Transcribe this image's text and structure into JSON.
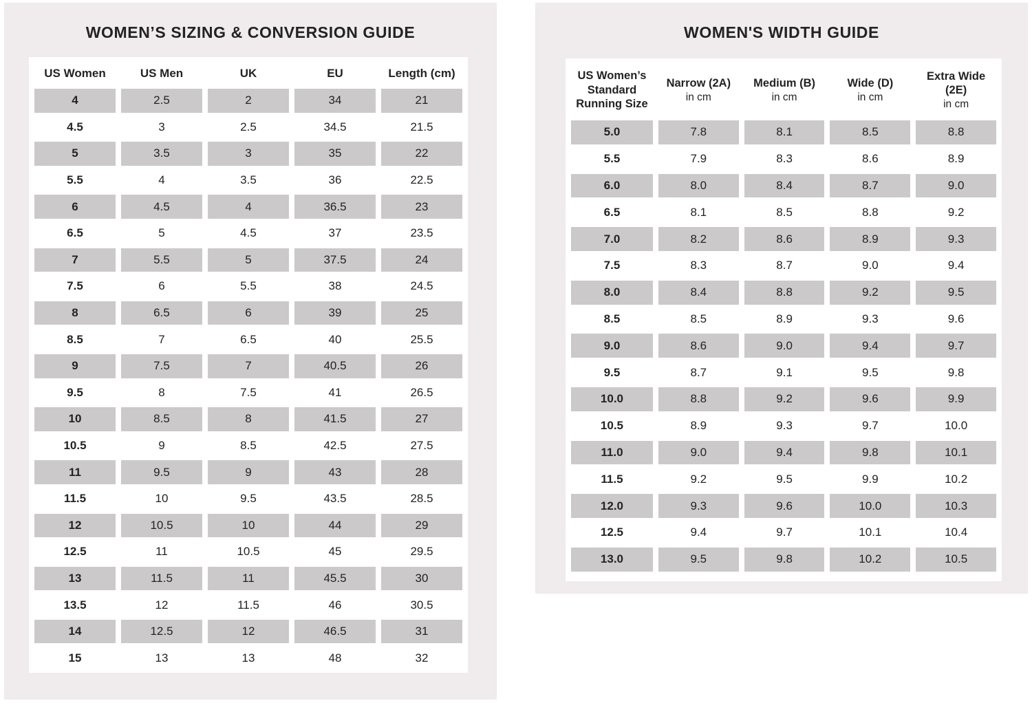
{
  "page": {
    "background": "#ffffff",
    "panel_background": "#f0ebec",
    "shaded_cell_color": "#cbc9c9",
    "text_color": "#232323"
  },
  "sizing_guide": {
    "title": "WOMEN’S SIZING & CONVERSION GUIDE",
    "columns": [
      "US Women",
      "US Men",
      "UK",
      "EU",
      "Length (cm)"
    ],
    "rows": [
      [
        "4",
        "2.5",
        "2",
        "34",
        "21"
      ],
      [
        "4.5",
        "3",
        "2.5",
        "34.5",
        "21.5"
      ],
      [
        "5",
        "3.5",
        "3",
        "35",
        "22"
      ],
      [
        "5.5",
        "4",
        "3.5",
        "36",
        "22.5"
      ],
      [
        "6",
        "4.5",
        "4",
        "36.5",
        "23"
      ],
      [
        "6.5",
        "5",
        "4.5",
        "37",
        "23.5"
      ],
      [
        "7",
        "5.5",
        "5",
        "37.5",
        "24"
      ],
      [
        "7.5",
        "6",
        "5.5",
        "38",
        "24.5"
      ],
      [
        "8",
        "6.5",
        "6",
        "39",
        "25"
      ],
      [
        "8.5",
        "7",
        "6.5",
        "40",
        "25.5"
      ],
      [
        "9",
        "7.5",
        "7",
        "40.5",
        "26"
      ],
      [
        "9.5",
        "8",
        "7.5",
        "41",
        "26.5"
      ],
      [
        "10",
        "8.5",
        "8",
        "41.5",
        "27"
      ],
      [
        "10.5",
        "9",
        "8.5",
        "42.5",
        "27.5"
      ],
      [
        "11",
        "9.5",
        "9",
        "43",
        "28"
      ],
      [
        "11.5",
        "10",
        "9.5",
        "43.5",
        "28.5"
      ],
      [
        "12",
        "10.5",
        "10",
        "44",
        "29"
      ],
      [
        "12.5",
        "11",
        "10.5",
        "45",
        "29.5"
      ],
      [
        "13",
        "11.5",
        "11",
        "45.5",
        "30"
      ],
      [
        "13.5",
        "12",
        "11.5",
        "46",
        "30.5"
      ],
      [
        "14",
        "12.5",
        "12",
        "46.5",
        "31"
      ],
      [
        "15",
        "13",
        "13",
        "48",
        "32"
      ]
    ]
  },
  "width_guide": {
    "title": "WOMEN'S WIDTH GUIDE",
    "columns": [
      {
        "label": "US Women’s Standard Running Size",
        "sub": ""
      },
      {
        "label": "Narrow (2A)",
        "sub": "in cm"
      },
      {
        "label": "Medium (B)",
        "sub": "in cm"
      },
      {
        "label": "Wide (D)",
        "sub": "in cm"
      },
      {
        "label": "Extra Wide (2E)",
        "sub": "in cm"
      }
    ],
    "rows": [
      [
        "5.0",
        "7.8",
        "8.1",
        "8.5",
        "8.8"
      ],
      [
        "5.5",
        "7.9",
        "8.3",
        "8.6",
        "8.9"
      ],
      [
        "6.0",
        "8.0",
        "8.4",
        "8.7",
        "9.0"
      ],
      [
        "6.5",
        "8.1",
        "8.5",
        "8.8",
        "9.2"
      ],
      [
        "7.0",
        "8.2",
        "8.6",
        "8.9",
        "9.3"
      ],
      [
        "7.5",
        "8.3",
        "8.7",
        "9.0",
        "9.4"
      ],
      [
        "8.0",
        "8.4",
        "8.8",
        "9.2",
        "9.5"
      ],
      [
        "8.5",
        "8.5",
        "8.9",
        "9.3",
        "9.6"
      ],
      [
        "9.0",
        "8.6",
        "9.0",
        "9.4",
        "9.7"
      ],
      [
        "9.5",
        "8.7",
        "9.1",
        "9.5",
        "9.8"
      ],
      [
        "10.0",
        "8.8",
        "9.2",
        "9.6",
        "9.9"
      ],
      [
        "10.5",
        "8.9",
        "9.3",
        "9.7",
        "10.0"
      ],
      [
        "11.0",
        "9.0",
        "9.4",
        "9.8",
        "10.1"
      ],
      [
        "11.5",
        "9.2",
        "9.5",
        "9.9",
        "10.2"
      ],
      [
        "12.0",
        "9.3",
        "9.6",
        "10.0",
        "10.3"
      ],
      [
        "12.5",
        "9.4",
        "9.7",
        "10.1",
        "10.4"
      ],
      [
        "13.0",
        "9.5",
        "9.8",
        "10.2",
        "10.5"
      ]
    ]
  }
}
